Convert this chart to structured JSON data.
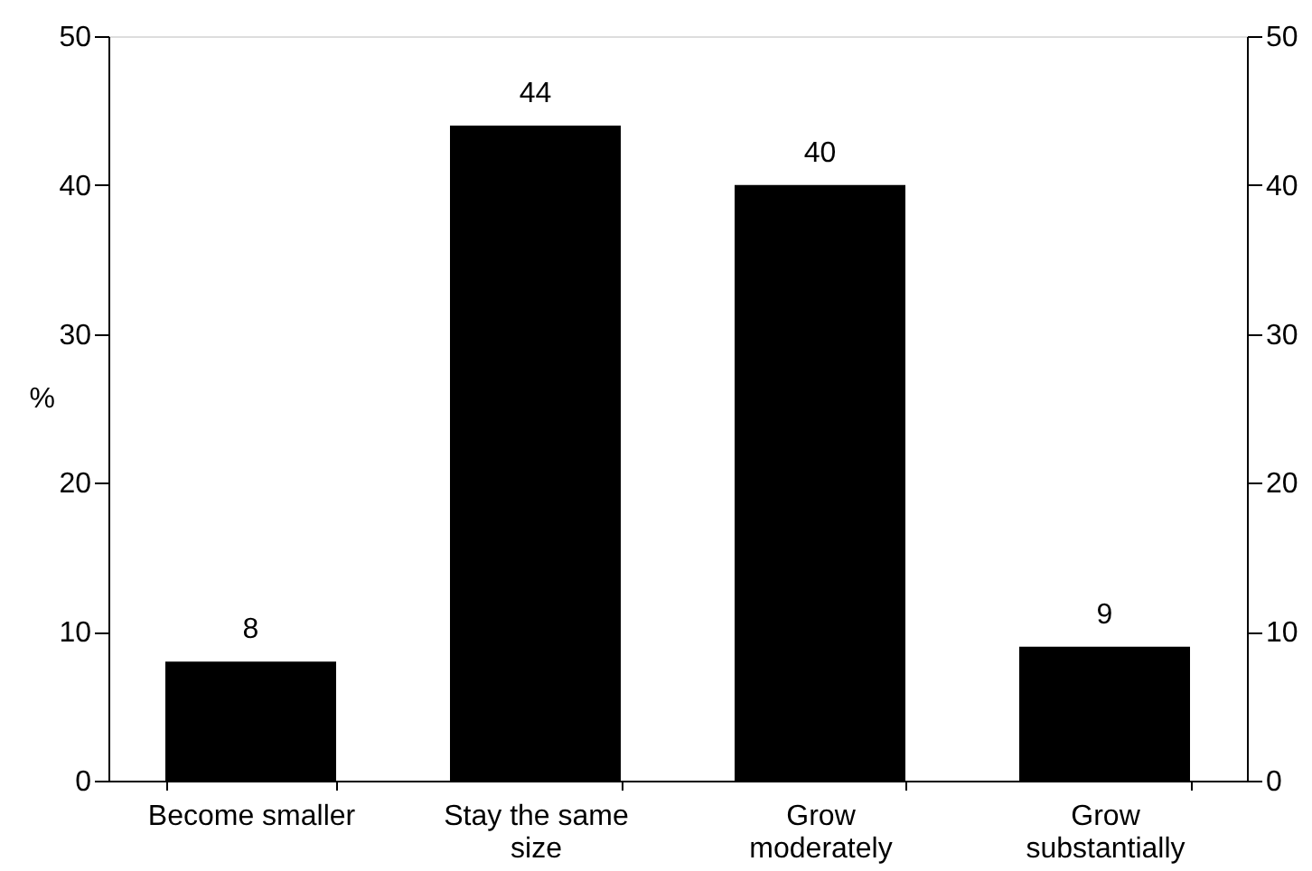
{
  "chart_data": {
    "type": "bar",
    "ylabel": "%",
    "categories": [
      "Become smaller",
      "Stay the same\nsize",
      "Grow\nmoderately",
      "Grow\nsubstantially"
    ],
    "values": [
      8,
      44,
      40,
      9
    ],
    "color": "#000000",
    "ylim": [
      0,
      50
    ],
    "yticks": [
      0,
      10,
      20,
      30,
      40,
      50
    ],
    "y2lim": [
      0,
      50
    ],
    "y2ticks": [
      0,
      10,
      20,
      30,
      40,
      50
    ],
    "data_labels": true,
    "grid": false
  }
}
